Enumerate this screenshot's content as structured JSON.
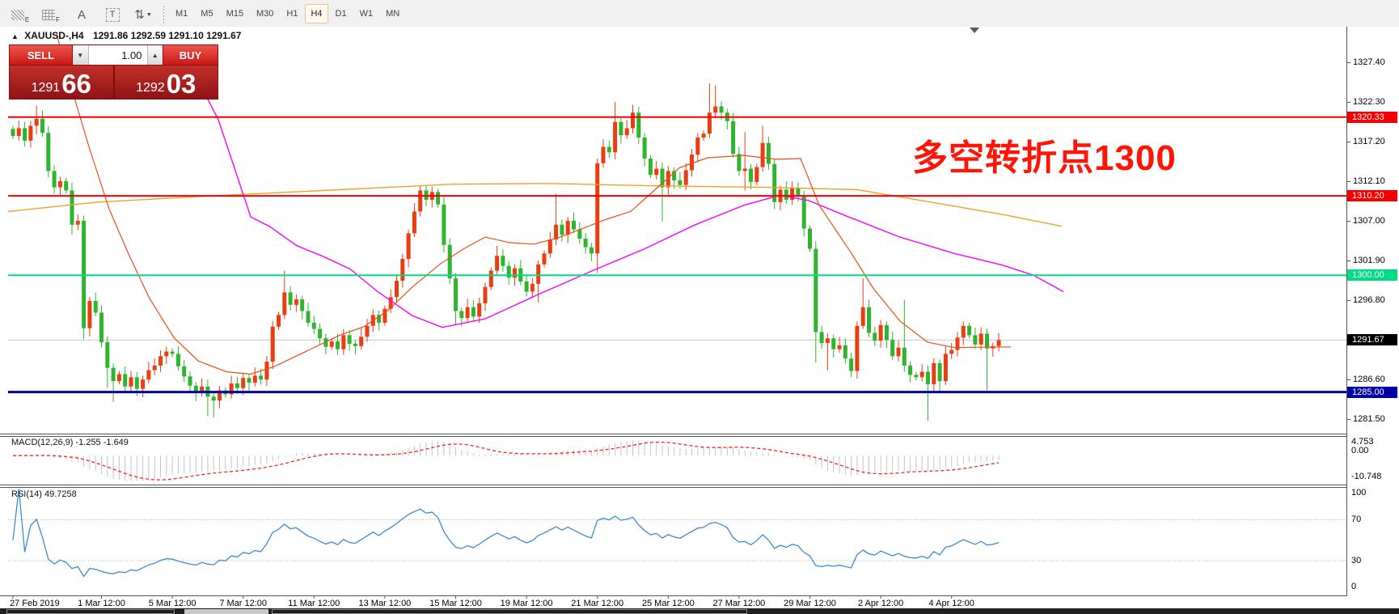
{
  "toolbar": {
    "tools": [
      {
        "name": "equidistant-channel-icon",
        "kind": "hatch",
        "sub": "E"
      },
      {
        "name": "fibo-grid-icon",
        "kind": "dotgrid",
        "sub": "F"
      },
      {
        "name": "label-tool-icon",
        "kind": "glyph",
        "glyph": "A"
      },
      {
        "name": "text-tool-icon",
        "kind": "tbox",
        "glyph": "T"
      },
      {
        "name": "arrows-tool-icon",
        "kind": "glyph",
        "glyph": "⇅",
        "caret": "▼"
      }
    ],
    "timeframes": [
      {
        "label": "M1",
        "active": false
      },
      {
        "label": "M5",
        "active": false
      },
      {
        "label": "M15",
        "active": false
      },
      {
        "label": "M30",
        "active": false
      },
      {
        "label": "H1",
        "active": false
      },
      {
        "label": "H4",
        "active": true
      },
      {
        "label": "D1",
        "active": false
      },
      {
        "label": "W1",
        "active": false
      },
      {
        "label": "MN",
        "active": false
      }
    ]
  },
  "chart": {
    "title_marker": "▲",
    "symbol_period": "XAUUSD-,H4",
    "ohlc_text": "1291.86 1292.59 1291.10 1291.67",
    "trade_panel": {
      "sell_label": "SELL",
      "buy_label": "BUY",
      "volume": "1.00",
      "spin_down": "▼",
      "spin_up": "▲",
      "sell_price_prefix": "1291",
      "sell_price_big": "66",
      "buy_price_prefix": "1292",
      "buy_price_big": "03"
    },
    "annotation": {
      "text": "多空转折点1300",
      "color": "#ff1405"
    }
  },
  "y_axis": {
    "ticks": [
      "1327.40",
      "1322.30",
      "1317.20",
      "1312.10",
      "1307.00",
      "1301.90",
      "1296.80",
      "1286.60",
      "1281.50"
    ],
    "badges": [
      {
        "label": "1320.33",
        "price": 1320.33,
        "bg": "#f40000",
        "fg": "#ffffff"
      },
      {
        "label": "1310.20",
        "price": 1310.2,
        "bg": "#f40000",
        "fg": "#ffffff"
      },
      {
        "label": "1300.00",
        "price": 1300.0,
        "bg": "#00dd84",
        "fg": "#ffffff"
      },
      {
        "label": "1291.67",
        "price": 1291.67,
        "bg": "#000000",
        "fg": "#ffffff"
      },
      {
        "label": "1285.00",
        "price": 1285.0,
        "bg": "#0000a8",
        "fg": "#ffffff"
      }
    ]
  },
  "macd": {
    "label": "MACD(12,26,9)",
    "values": "-1.255 -1.649",
    "scale": [
      "4.753",
      "0.00",
      "-10.748"
    ],
    "params": {
      "fast": 12,
      "slow": 26,
      "signal": 9
    }
  },
  "rsi": {
    "label": "RSI(14)",
    "value": "49.7258",
    "scale": [
      "100",
      "70",
      "30",
      "0"
    ],
    "levels": [
      70,
      30
    ],
    "period": 14
  },
  "colors": {
    "bull": "#eb3d10",
    "bear": "#2eb52e",
    "ma_fast": "#ea4e1a",
    "ma_mid": "#ff00ff",
    "ma_slow": "#efa32a",
    "line_red": "#f40000",
    "line_green": "#00dd84",
    "line_blue": "#0000a8",
    "current_line": "#c8c8c8",
    "macd_hist": "#c4c4c4",
    "macd_signal": "#ff2020",
    "rsi_line": "#3d8bd4",
    "level_dotted": "#b8b8b8"
  },
  "chart_data": {
    "type": "candlestick",
    "symbol": "XAUUSD",
    "period": "H4",
    "first_open": 1318.8,
    "closes": [
      1317.9,
      1318.9,
      1317.3,
      1319.2,
      1320.1,
      1318.3,
      1313.4,
      1311.3,
      1312.1,
      1310.9,
      1306.5,
      1307.0,
      1293.2,
      1296.7,
      1295.2,
      1291.4,
      1288.1,
      1286.4,
      1287.3,
      1285.7,
      1286.9,
      1285.4,
      1286.6,
      1287.8,
      1288.4,
      1289.6,
      1290.2,
      1289.9,
      1288.3,
      1287.0,
      1285.8,
      1284.9,
      1285.7,
      1284.4,
      1283.9,
      1285.2,
      1284.7,
      1286.1,
      1285.5,
      1286.8,
      1286.2,
      1287.1,
      1286.6,
      1288.9,
      1293.4,
      1294.9,
      1297.8,
      1296.2,
      1296.9,
      1295.4,
      1293.9,
      1293.1,
      1291.9,
      1290.8,
      1291.5,
      1290.5,
      1292.3,
      1291.2,
      1290.9,
      1292.1,
      1293.5,
      1294.9,
      1293.9,
      1295.7,
      1297.2,
      1299.3,
      1302.1,
      1305.4,
      1308.2,
      1310.9,
      1309.7,
      1310.7,
      1309.1,
      1303.9,
      1299.6,
      1295.4,
      1294.5,
      1295.9,
      1294.7,
      1296.4,
      1298.5,
      1300.6,
      1302.5,
      1301.2,
      1299.7,
      1300.9,
      1299.2,
      1297.9,
      1298.9,
      1301.4,
      1302.8,
      1304.6,
      1306.5,
      1305.2,
      1307.0,
      1305.9,
      1304.7,
      1303.6,
      1302.8,
      1314.4,
      1316.5,
      1315.8,
      1319.7,
      1318.0,
      1318.9,
      1320.9,
      1317.7,
      1315.0,
      1312.9,
      1313.7,
      1311.3,
      1313.4,
      1312.2,
      1311.6,
      1313.5,
      1315.5,
      1317.7,
      1318.2,
      1320.9,
      1321.7,
      1320.9,
      1319.8,
      1315.6,
      1313.4,
      1313.7,
      1312.0,
      1313.9,
      1317.0,
      1314.3,
      1309.4,
      1311.0,
      1309.7,
      1311.2,
      1310.3,
      1306.0,
      1303.4,
      1292.7,
      1291.3,
      1291.9,
      1290.5,
      1291.0,
      1289.3,
      1287.7,
      1293.5,
      1295.9,
      1292.6,
      1291.6,
      1293.6,
      1291.7,
      1289.6,
      1290.7,
      1288.4,
      1287.2,
      1286.9,
      1287.6,
      1286.0,
      1288.7,
      1286.4,
      1289.9,
      1290.4,
      1292.0,
      1293.5,
      1292.3,
      1291.1,
      1292.5,
      1290.6,
      1290.9,
      1291.67
    ],
    "wicks": {
      "4": [
        1321.8,
        null
      ],
      "6": [
        null,
        1312.6
      ],
      "10": [
        null,
        1305.2
      ],
      "12": [
        null,
        1291.8
      ],
      "16": [
        null,
        1285.5
      ],
      "17": [
        null,
        1283.7
      ],
      "26": [
        1290.8,
        null
      ],
      "33": [
        null,
        1281.9
      ],
      "34": [
        null,
        1281.7
      ],
      "44": [
        1294.1,
        null
      ],
      "46": [
        1300.6,
        null
      ],
      "55": [
        null,
        1289.8
      ],
      "69": [
        1311.5,
        null
      ],
      "71": [
        1311.4,
        null
      ],
      "73": [
        null,
        1302.9
      ],
      "75": [
        null,
        1293.6
      ],
      "82": [
        1303.8,
        null
      ],
      "89": [
        1301.9,
        1296.5
      ],
      "92": [
        1310.5,
        null
      ],
      "99": [
        1315.0,
        1300.3
      ],
      "102": [
        1322.3,
        null
      ],
      "105": [
        1321.9,
        null
      ],
      "110": [
        null,
        1306.9
      ],
      "118": [
        1324.66,
        null
      ],
      "119": [
        1324.4,
        null
      ],
      "124": [
        1318.4,
        1310.9
      ],
      "127": [
        1319.2,
        null
      ],
      "136": [
        null,
        1288.8
      ],
      "138": [
        null,
        1287.8
      ],
      "144": [
        1299.6,
        null
      ],
      "151": [
        1296.8,
        null
      ],
      "155": [
        null,
        1281.3
      ],
      "157": [
        null,
        1284.9
      ],
      "165": [
        null,
        1285.2
      ],
      "167": [
        1292.6,
        1290.2
      ]
    },
    "hlines": [
      {
        "price": 1320.33,
        "color": "#f40000",
        "width": 2
      },
      {
        "price": 1310.2,
        "color": "#f40000",
        "width": 2
      },
      {
        "price": 1300.0,
        "color": "#00dd84",
        "width": 2
      },
      {
        "price": 1285.0,
        "color": "#0000a8",
        "width": 3
      }
    ],
    "current_price": 1291.67,
    "moving_averages": {
      "fast": [
        [
          70,
          1331.0
        ],
        [
          90,
          1323.5
        ],
        [
          110,
          1316.5
        ],
        [
          135,
          1308.5
        ],
        [
          160,
          1302.5
        ],
        [
          185,
          1297.0
        ],
        [
          215,
          1292.0
        ],
        [
          245,
          1289.0
        ],
        [
          280,
          1287.6
        ],
        [
          310,
          1287.3
        ],
        [
          340,
          1288.3
        ],
        [
          380,
          1290.3
        ],
        [
          420,
          1292.3
        ],
        [
          450,
          1293.4
        ],
        [
          480,
          1295.5
        ],
        [
          510,
          1298.5
        ],
        [
          545,
          1301.5
        ],
        [
          575,
          1303.5
        ],
        [
          600,
          1304.9
        ],
        [
          630,
          1304.2
        ],
        [
          660,
          1304.0
        ],
        [
          690,
          1304.8
        ],
        [
          720,
          1306.0
        ],
        [
          750,
          1307.2
        ],
        [
          780,
          1308.2
        ],
        [
          810,
          1311.0
        ],
        [
          840,
          1313.8
        ],
        [
          875,
          1315.1
        ],
        [
          920,
          1315.4
        ],
        [
          960,
          1314.9
        ],
        [
          990,
          1315.0
        ],
        [
          1013,
          1309.0
        ],
        [
          1053,
          1302.8
        ],
        [
          1080,
          1298.3
        ],
        [
          1113,
          1294.1
        ],
        [
          1147,
          1291.4
        ],
        [
          1180,
          1290.7
        ],
        [
          1250,
          1290.8
        ]
      ],
      "mid": [
        [
          235,
          1327.0
        ],
        [
          270,
          1320.0
        ],
        [
          310,
          1307.5
        ],
        [
          333,
          1306.3
        ],
        [
          367,
          1303.8
        ],
        [
          400,
          1302.4
        ],
        [
          433,
          1300.8
        ],
        [
          467,
          1297.9
        ],
        [
          510,
          1294.8
        ],
        [
          547,
          1293.3
        ],
        [
          600,
          1294.4
        ],
        [
          667,
          1297.6
        ],
        [
          733,
          1300.6
        ],
        [
          797,
          1303.4
        ],
        [
          860,
          1306.5
        ],
        [
          920,
          1309.0
        ],
        [
          965,
          1310.3
        ],
        [
          1000,
          1309.6
        ],
        [
          1047,
          1307.6
        ],
        [
          1113,
          1304.9
        ],
        [
          1180,
          1302.8
        ],
        [
          1240,
          1301.3
        ],
        [
          1278,
          1300.0
        ],
        [
          1315,
          1297.9
        ]
      ],
      "slow": [
        [
          10,
          1308.2
        ],
        [
          120,
          1309.4
        ],
        [
          260,
          1310.2
        ],
        [
          420,
          1311.0
        ],
        [
          560,
          1311.7
        ],
        [
          680,
          1311.8
        ],
        [
          800,
          1311.5
        ],
        [
          950,
          1311.3
        ],
        [
          1060,
          1311.0
        ],
        [
          1140,
          1309.6
        ],
        [
          1240,
          1307.8
        ],
        [
          1313,
          1306.3
        ]
      ]
    },
    "x_labels": [
      {
        "bar": 0,
        "text": "27 Feb 2019"
      },
      {
        "bar": 15,
        "text": "1 Mar 12:00"
      },
      {
        "bar": 27,
        "text": "5 Mar 12:00"
      },
      {
        "bar": 39,
        "text": "7 Mar 12:00"
      },
      {
        "bar": 51,
        "text": "11 Mar 12:00"
      },
      {
        "bar": 63,
        "text": "13 Mar 12:00"
      },
      {
        "bar": 75,
        "text": "15 Mar 12:00"
      },
      {
        "bar": 87,
        "text": "19 Mar 12:00"
      },
      {
        "bar": 99,
        "text": "21 Mar 12:00"
      },
      {
        "bar": 111,
        "text": "25 Mar 12:00"
      },
      {
        "bar": 123,
        "text": "27 Mar 12:00"
      },
      {
        "bar": 135,
        "text": "29 Mar 12:00"
      },
      {
        "bar": 147,
        "text": "2 Apr 12:00"
      },
      {
        "bar": 159,
        "text": "4 Apr 12:00"
      }
    ],
    "y_range": [
      1279.0,
      1331.9
    ]
  },
  "tabstrip": {
    "tabs": [
      {
        "style": "outline"
      },
      {
        "style": "filled"
      },
      {
        "style": "outline"
      }
    ]
  }
}
